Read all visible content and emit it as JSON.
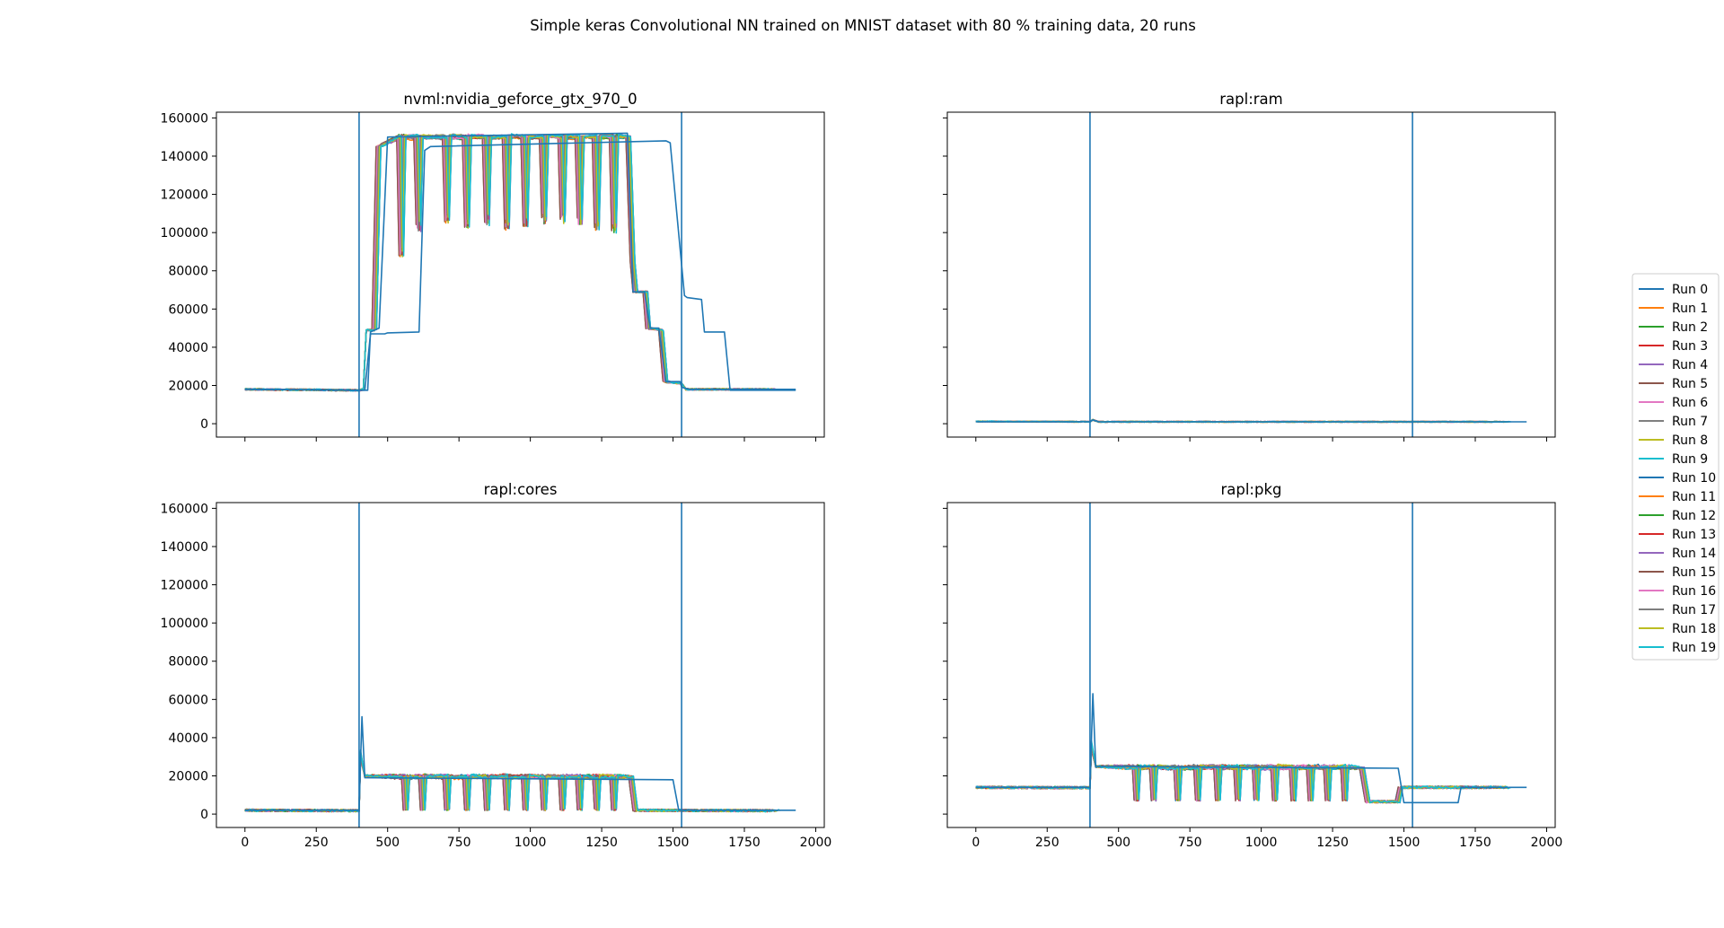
{
  "figure": {
    "title": "Simple keras Convolutional NN trained on MNIST dataset with 80 % training data, 20 runs"
  },
  "colors": {
    "cycle": [
      "#1f77b4",
      "#ff7f0e",
      "#2ca02c",
      "#d62728",
      "#9467bd",
      "#8c564b",
      "#e377c2",
      "#7f7f7f",
      "#bcbd22",
      "#17becf"
    ],
    "vline": "#1f77b4",
    "axes": "#000000"
  },
  "legend": {
    "placement": "right-center",
    "entries": [
      "Run 0",
      "Run 1",
      "Run 2",
      "Run 3",
      "Run 4",
      "Run 5",
      "Run 6",
      "Run 7",
      "Run 8",
      "Run 9",
      "Run 10",
      "Run 11",
      "Run 12",
      "Run 13",
      "Run 14",
      "Run 15",
      "Run 16",
      "Run 17",
      "Run 18",
      "Run 19"
    ]
  },
  "chart_data": [
    {
      "type": "line",
      "title": "nvml:nvidia_geforce_gtx_970_0",
      "xlim": [
        -100,
        2030
      ],
      "ylim": [
        -7000,
        163000
      ],
      "xticks": [
        0,
        250,
        500,
        750,
        1000,
        1250,
        1500,
        1750,
        2000
      ],
      "yticks": [
        0,
        20000,
        40000,
        60000,
        80000,
        100000,
        120000,
        140000,
        160000
      ],
      "show_xtick_labels": false,
      "show_ytick_labels": true,
      "vlines": [
        400,
        1530
      ],
      "series_profile": "gpu",
      "series": [
        {
          "name": "Run 0",
          "x": [
            0,
            400,
            420,
            440,
            490,
            500,
            610,
            630,
            650,
            1475,
            1490,
            1540,
            1550,
            1600,
            1610,
            1680,
            1700,
            1930
          ],
          "y": [
            18000,
            17500,
            17500,
            47000,
            47000,
            47500,
            48000,
            143000,
            145000,
            148000,
            147000,
            67000,
            66000,
            65000,
            48000,
            48000,
            17500,
            17500
          ]
        },
        {
          "name": "Run 10",
          "x": [
            0,
            400,
            430,
            440,
            470,
            500,
            1340,
            1360,
            1400,
            1420,
            1450,
            1475,
            1525,
            1530,
            1560,
            1930
          ],
          "y": [
            18000,
            17500,
            17500,
            48000,
            50000,
            150000,
            152000,
            69000,
            69000,
            50000,
            50000,
            22000,
            22000,
            19000,
            18000,
            18000
          ]
        }
      ]
    },
    {
      "type": "line",
      "title": "rapl:ram",
      "xlim": [
        -100,
        2030
      ],
      "ylim": [
        -7000,
        163000
      ],
      "xticks": [
        0,
        250,
        500,
        750,
        1000,
        1250,
        1500,
        1750,
        2000
      ],
      "yticks": [
        0,
        20000,
        40000,
        60000,
        80000,
        100000,
        120000,
        140000,
        160000
      ],
      "show_xtick_labels": false,
      "show_ytick_labels": false,
      "vlines": [
        400,
        1530
      ],
      "series_profile": "ram",
      "series": [
        {
          "name": "Run 0",
          "x": [
            0,
            400,
            410,
            430,
            1930
          ],
          "y": [
            1000,
            1000,
            2000,
            1000,
            1000
          ]
        }
      ]
    },
    {
      "type": "line",
      "title": "rapl:cores",
      "xlim": [
        -100,
        2030
      ],
      "ylim": [
        -7000,
        163000
      ],
      "xticks": [
        0,
        250,
        500,
        750,
        1000,
        1250,
        1500,
        1750,
        2000
      ],
      "yticks": [
        0,
        20000,
        40000,
        60000,
        80000,
        100000,
        120000,
        140000,
        160000
      ],
      "show_xtick_labels": true,
      "show_ytick_labels": true,
      "vlines": [
        400,
        1530
      ],
      "series_profile": "cores",
      "series": [
        {
          "name": "Run 0",
          "x": [
            0,
            400,
            410,
            420,
            1500,
            1520,
            1930
          ],
          "y": [
            2000,
            2000,
            51000,
            19000,
            18000,
            2000,
            2000
          ]
        }
      ]
    },
    {
      "type": "line",
      "title": "rapl:pkg",
      "xlim": [
        -100,
        2030
      ],
      "ylim": [
        -7000,
        163000
      ],
      "xticks": [
        0,
        250,
        500,
        750,
        1000,
        1250,
        1500,
        1750,
        2000
      ],
      "yticks": [
        0,
        20000,
        40000,
        60000,
        80000,
        100000,
        120000,
        140000,
        160000
      ],
      "show_xtick_labels": true,
      "show_ytick_labels": false,
      "vlines": [
        400,
        1530
      ],
      "series_profile": "pkg",
      "series": [
        {
          "name": "Run 0",
          "x": [
            0,
            400,
            410,
            420,
            1480,
            1500,
            1690,
            1700,
            1930
          ],
          "y": [
            14000,
            14000,
            63000,
            25000,
            24000,
            6000,
            6000,
            14000,
            14000
          ]
        }
      ]
    }
  ]
}
